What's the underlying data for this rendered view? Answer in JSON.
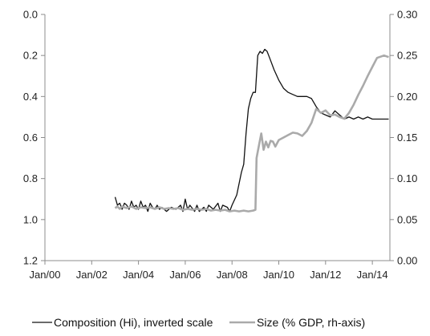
{
  "chart_data": {
    "type": "line",
    "title": "",
    "xlabel": "",
    "ylabel": "",
    "legend_position": "bottom",
    "grid": false,
    "x_range": [
      2000.0,
      2014.75
    ],
    "x_ticks": [
      {
        "x": 2000,
        "label": "Jan/00"
      },
      {
        "x": 2002,
        "label": "Jan/02"
      },
      {
        "x": 2004,
        "label": "Jan/04"
      },
      {
        "x": 2006,
        "label": "Jan/06"
      },
      {
        "x": 2008,
        "label": "Jan/08"
      },
      {
        "x": 2010,
        "label": "Jan/10"
      },
      {
        "x": 2012,
        "label": "Jan/12"
      },
      {
        "x": 2014,
        "label": "Jan/14"
      }
    ],
    "y_left": {
      "range": [
        0,
        1.2
      ],
      "inverted": true,
      "ticks": [
        {
          "v": 0.0,
          "label": "0.0"
        },
        {
          "v": 0.2,
          "label": "0.2"
        },
        {
          "v": 0.4,
          "label": "0.4"
        },
        {
          "v": 0.6,
          "label": "0.6"
        },
        {
          "v": 0.8,
          "label": "0.8"
        },
        {
          "v": 1.0,
          "label": "1.0"
        },
        {
          "v": 1.2,
          "label": "1.2"
        }
      ]
    },
    "y_right": {
      "range": [
        0,
        0.3
      ],
      "ticks": [
        {
          "v": 0.0,
          "label": "0.00"
        },
        {
          "v": 0.05,
          "label": "0.05"
        },
        {
          "v": 0.1,
          "label": "0.10"
        },
        {
          "v": 0.15,
          "label": "0.15"
        },
        {
          "v": 0.2,
          "label": "0.20"
        },
        {
          "v": 0.25,
          "label": "0.25"
        },
        {
          "v": 0.3,
          "label": "0.30"
        }
      ]
    },
    "series": [
      {
        "name": "Composition (Hi), inverted scale",
        "axis": "left",
        "color": "#111111",
        "points": [
          [
            2003.0,
            0.89
          ],
          [
            2003.1,
            0.93
          ],
          [
            2003.2,
            0.92
          ],
          [
            2003.3,
            0.95
          ],
          [
            2003.4,
            0.92
          ],
          [
            2003.5,
            0.93
          ],
          [
            2003.6,
            0.95
          ],
          [
            2003.7,
            0.91
          ],
          [
            2003.8,
            0.94
          ],
          [
            2003.9,
            0.93
          ],
          [
            2004.0,
            0.95
          ],
          [
            2004.1,
            0.91
          ],
          [
            2004.2,
            0.94
          ],
          [
            2004.3,
            0.93
          ],
          [
            2004.4,
            0.96
          ],
          [
            2004.5,
            0.92
          ],
          [
            2004.6,
            0.94
          ],
          [
            2004.7,
            0.95
          ],
          [
            2004.8,
            0.93
          ],
          [
            2004.9,
            0.95
          ],
          [
            2005.0,
            0.94
          ],
          [
            2005.2,
            0.96
          ],
          [
            2005.4,
            0.94
          ],
          [
            2005.6,
            0.95
          ],
          [
            2005.8,
            0.93
          ],
          [
            2005.9,
            0.96
          ],
          [
            2006.0,
            0.9
          ],
          [
            2006.1,
            0.95
          ],
          [
            2006.2,
            0.93
          ],
          [
            2006.4,
            0.96
          ],
          [
            2006.5,
            0.93
          ],
          [
            2006.6,
            0.96
          ],
          [
            2006.8,
            0.94
          ],
          [
            2006.9,
            0.96
          ],
          [
            2007.0,
            0.93
          ],
          [
            2007.2,
            0.95
          ],
          [
            2007.4,
            0.92
          ],
          [
            2007.5,
            0.96
          ],
          [
            2007.6,
            0.93
          ],
          [
            2007.8,
            0.94
          ],
          [
            2007.9,
            0.96
          ],
          [
            2008.0,
            0.93
          ],
          [
            2008.2,
            0.88
          ],
          [
            2008.4,
            0.77
          ],
          [
            2008.5,
            0.73
          ],
          [
            2008.6,
            0.58
          ],
          [
            2008.7,
            0.46
          ],
          [
            2008.8,
            0.41
          ],
          [
            2008.9,
            0.38
          ],
          [
            2009.0,
            0.38
          ],
          [
            2009.1,
            0.2
          ],
          [
            2009.2,
            0.18
          ],
          [
            2009.3,
            0.19
          ],
          [
            2009.4,
            0.17
          ],
          [
            2009.5,
            0.18
          ],
          [
            2009.6,
            0.21
          ],
          [
            2009.8,
            0.27
          ],
          [
            2010.0,
            0.32
          ],
          [
            2010.2,
            0.36
          ],
          [
            2010.4,
            0.38
          ],
          [
            2010.6,
            0.39
          ],
          [
            2010.8,
            0.4
          ],
          [
            2011.0,
            0.4
          ],
          [
            2011.2,
            0.4
          ],
          [
            2011.4,
            0.41
          ],
          [
            2011.6,
            0.45
          ],
          [
            2011.8,
            0.48
          ],
          [
            2012.0,
            0.49
          ],
          [
            2012.2,
            0.5
          ],
          [
            2012.4,
            0.47
          ],
          [
            2012.6,
            0.49
          ],
          [
            2012.8,
            0.51
          ],
          [
            2013.0,
            0.5
          ],
          [
            2013.2,
            0.51
          ],
          [
            2013.4,
            0.5
          ],
          [
            2013.6,
            0.51
          ],
          [
            2013.8,
            0.5
          ],
          [
            2014.0,
            0.51
          ],
          [
            2014.3,
            0.51
          ],
          [
            2014.7,
            0.51
          ]
        ]
      },
      {
        "name": "Size (% GDP, rh-axis)",
        "axis": "right",
        "color": "#aaaaaa",
        "points": [
          [
            2003.0,
            0.064
          ],
          [
            2003.1,
            0.066
          ],
          [
            2003.2,
            0.063
          ],
          [
            2003.3,
            0.066
          ],
          [
            2003.5,
            0.064
          ],
          [
            2003.7,
            0.066
          ],
          [
            2003.9,
            0.063
          ],
          [
            2004.1,
            0.065
          ],
          [
            2004.3,
            0.064
          ],
          [
            2004.5,
            0.065
          ],
          [
            2004.7,
            0.063
          ],
          [
            2004.9,
            0.065
          ],
          [
            2005.1,
            0.063
          ],
          [
            2005.3,
            0.064
          ],
          [
            2005.5,
            0.063
          ],
          [
            2005.7,
            0.064
          ],
          [
            2005.9,
            0.062
          ],
          [
            2006.1,
            0.063
          ],
          [
            2006.3,
            0.062
          ],
          [
            2006.5,
            0.063
          ],
          [
            2006.7,
            0.062
          ],
          [
            2006.9,
            0.063
          ],
          [
            2007.1,
            0.061
          ],
          [
            2007.3,
            0.062
          ],
          [
            2007.5,
            0.061
          ],
          [
            2007.7,
            0.062
          ],
          [
            2007.9,
            0.06
          ],
          [
            2008.1,
            0.061
          ],
          [
            2008.3,
            0.06
          ],
          [
            2008.5,
            0.061
          ],
          [
            2008.7,
            0.06
          ],
          [
            2008.9,
            0.061
          ],
          [
            2009.0,
            0.062
          ],
          [
            2009.05,
            0.125
          ],
          [
            2009.15,
            0.14
          ],
          [
            2009.25,
            0.155
          ],
          [
            2009.35,
            0.135
          ],
          [
            2009.45,
            0.145
          ],
          [
            2009.55,
            0.138
          ],
          [
            2009.65,
            0.146
          ],
          [
            2009.75,
            0.145
          ],
          [
            2009.85,
            0.139
          ],
          [
            2010.0,
            0.147
          ],
          [
            2010.2,
            0.15
          ],
          [
            2010.4,
            0.153
          ],
          [
            2010.6,
            0.156
          ],
          [
            2010.8,
            0.155
          ],
          [
            2011.0,
            0.152
          ],
          [
            2011.2,
            0.158
          ],
          [
            2011.4,
            0.168
          ],
          [
            2011.6,
            0.185
          ],
          [
            2011.8,
            0.18
          ],
          [
            2012.0,
            0.183
          ],
          [
            2012.2,
            0.177
          ],
          [
            2012.4,
            0.178
          ],
          [
            2012.6,
            0.175
          ],
          [
            2012.8,
            0.173
          ],
          [
            2013.0,
            0.18
          ],
          [
            2013.2,
            0.19
          ],
          [
            2013.4,
            0.202
          ],
          [
            2013.6,
            0.213
          ],
          [
            2013.8,
            0.225
          ],
          [
            2014.0,
            0.236
          ],
          [
            2014.2,
            0.247
          ],
          [
            2014.4,
            0.249
          ],
          [
            2014.5,
            0.25
          ],
          [
            2014.7,
            0.248
          ]
        ]
      }
    ]
  }
}
